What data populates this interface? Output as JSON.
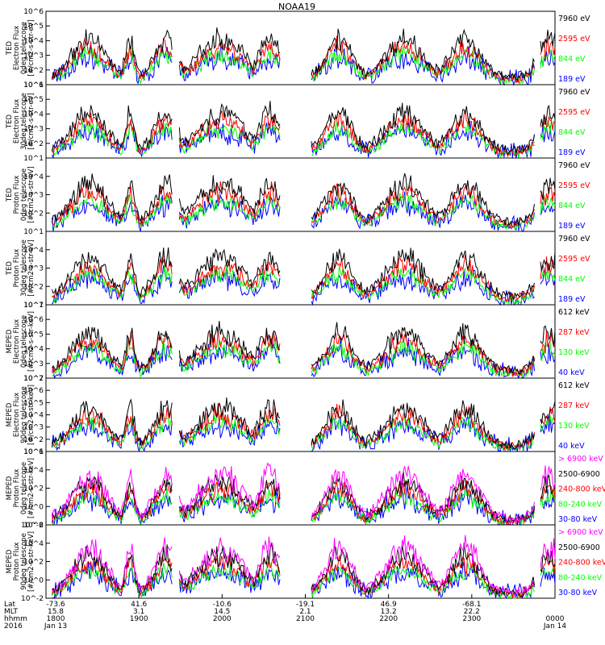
{
  "title": "NOAA19",
  "colors": {
    "black": "#000000",
    "red": "#ff0000",
    "green": "#00ff00",
    "blue": "#0000ff",
    "magenta": "#ff00ff"
  },
  "chart_data": {
    "type": "line",
    "x_axis": {
      "rows": [
        {
          "label": "Lat",
          "values": [
            "-73.6",
            "41.6",
            "-10.6",
            "-19.1",
            "46.9",
            "-68.1",
            ""
          ]
        },
        {
          "label": "MLT",
          "values": [
            "15.8",
            "3.1",
            "14.5",
            "2.1",
            "13.2",
            "22.2",
            ""
          ]
        },
        {
          "label": "hhmm",
          "values": [
            "1800",
            "1900",
            "2000",
            "2100",
            "2200",
            "2300",
            "0000"
          ]
        },
        {
          "label": "2016",
          "values": [
            "Jan 13",
            "",
            "",
            "",
            "",
            "",
            "Jan 14"
          ]
        }
      ],
      "time_range": [
        "2016-01-13 18:00",
        "2016-01-14 00:00"
      ]
    },
    "panels": [
      {
        "ylabel": [
          "TED",
          "Electron Flux",
          "0deg telescope",
          "[#/cm2-s-str-eV]"
        ],
        "yscale": "log",
        "ylim_exp": [
          1,
          6
        ],
        "ticks": [
          "10^1",
          "10^2",
          "10^3",
          "10^4",
          "10^5",
          "10^6"
        ],
        "series": [
          {
            "name": "7960 eV",
            "color": "black"
          },
          {
            "name": "2595 eV",
            "color": "red"
          },
          {
            "name": "844 eV",
            "color": "green"
          },
          {
            "name": "189 eV",
            "color": "blue"
          }
        ]
      },
      {
        "ylabel": [
          "TED",
          "Electron Flux",
          "30deg telescope",
          "[#/cm2-s-str-eV]"
        ],
        "yscale": "log",
        "ylim_exp": [
          1,
          6
        ],
        "ticks": [
          "10^1",
          "10^2",
          "10^3",
          "10^4",
          "10^5",
          "10^6"
        ],
        "series": [
          {
            "name": "7960 eV",
            "color": "black"
          },
          {
            "name": "2595 eV",
            "color": "red"
          },
          {
            "name": "844 eV",
            "color": "green"
          },
          {
            "name": "189 eV",
            "color": "blue"
          }
        ]
      },
      {
        "ylabel": [
          "TED",
          "Proton Flux",
          "0deg telescope",
          "[#/cm2-s-str-eV]"
        ],
        "yscale": "log",
        "ylim_exp": [
          1,
          5
        ],
        "ticks": [
          "10^1",
          "10^2",
          "10^3",
          "10^4"
        ],
        "series": [
          {
            "name": "7960 eV",
            "color": "black"
          },
          {
            "name": "2595 eV",
            "color": "red"
          },
          {
            "name": "844 eV",
            "color": "green"
          },
          {
            "name": "189 eV",
            "color": "blue"
          }
        ]
      },
      {
        "ylabel": [
          "TED",
          "Proton Flux",
          "30deg telescope",
          "[#/cm2-s-str-eV]"
        ],
        "yscale": "log",
        "ylim_exp": [
          1,
          5
        ],
        "ticks": [
          "10^1",
          "10^2",
          "10^3",
          "10^4"
        ],
        "series": [
          {
            "name": "7960 eV",
            "color": "black"
          },
          {
            "name": "2595 eV",
            "color": "red"
          },
          {
            "name": "844 eV",
            "color": "green"
          },
          {
            "name": "189 eV",
            "color": "blue"
          }
        ]
      },
      {
        "ylabel": [
          "MEPED",
          "Electron Flux",
          "0deg telescope",
          "[#/cm2-s-str-keV]"
        ],
        "yscale": "log",
        "ylim_exp": [
          2,
          7
        ],
        "ticks": [
          "10^2",
          "10^3",
          "10^4",
          "10^5",
          "10^6",
          "10^7"
        ],
        "series": [
          {
            "name": "612 keV",
            "color": "black"
          },
          {
            "name": "287 keV",
            "color": "red"
          },
          {
            "name": "130 keV",
            "color": "green"
          },
          {
            "name": "40 keV",
            "color": "blue"
          }
        ]
      },
      {
        "ylabel": [
          "MEPED",
          "Electron Flux",
          "90deg telescope",
          "[#/cm2-s-str-keV]"
        ],
        "yscale": "log",
        "ylim_exp": [
          1,
          7
        ],
        "ticks": [
          "10^1",
          "10^2",
          "10^3",
          "10^4",
          "10^5",
          "10^6",
          "10^7"
        ],
        "series": [
          {
            "name": "612 keV",
            "color": "black"
          },
          {
            "name": "287 keV",
            "color": "red"
          },
          {
            "name": "130 keV",
            "color": "green"
          },
          {
            "name": "40 keV",
            "color": "blue"
          }
        ]
      },
      {
        "ylabel": [
          "MEPED",
          "Proton Flux",
          "0deg telescope",
          "[#/cm2-s-str-keV]"
        ],
        "yscale": "log",
        "ylim_exp": [
          -2,
          6
        ],
        "ticks": [
          "10^-2",
          "10^0",
          "10^2",
          "10^4",
          "10^6"
        ],
        "series": [
          {
            "name": "> 6900 keV",
            "color": "magenta"
          },
          {
            "name": "2500-6900",
            "color": "black"
          },
          {
            "name": "240-800 keV",
            "color": "red"
          },
          {
            "name": "80-240 keV",
            "color": "green"
          },
          {
            "name": "30-80 keV",
            "color": "blue"
          }
        ]
      },
      {
        "ylabel": [
          "MEPED",
          "Proton Flux",
          "90deg telescope",
          "[#/cm2-s-str-keV]"
        ],
        "yscale": "log",
        "ylim_exp": [
          -2,
          6
        ],
        "ticks": [
          "10^-2",
          "10^0",
          "10^2",
          "10^4",
          "10^6"
        ],
        "series": [
          {
            "name": "> 6900 keV",
            "color": "magenta"
          },
          {
            "name": "2500-6900",
            "color": "black"
          },
          {
            "name": "240-800 keV",
            "color": "red"
          },
          {
            "name": "80-240 keV",
            "color": "green"
          },
          {
            "name": "30-80 keV",
            "color": "blue"
          }
        ]
      }
    ]
  }
}
